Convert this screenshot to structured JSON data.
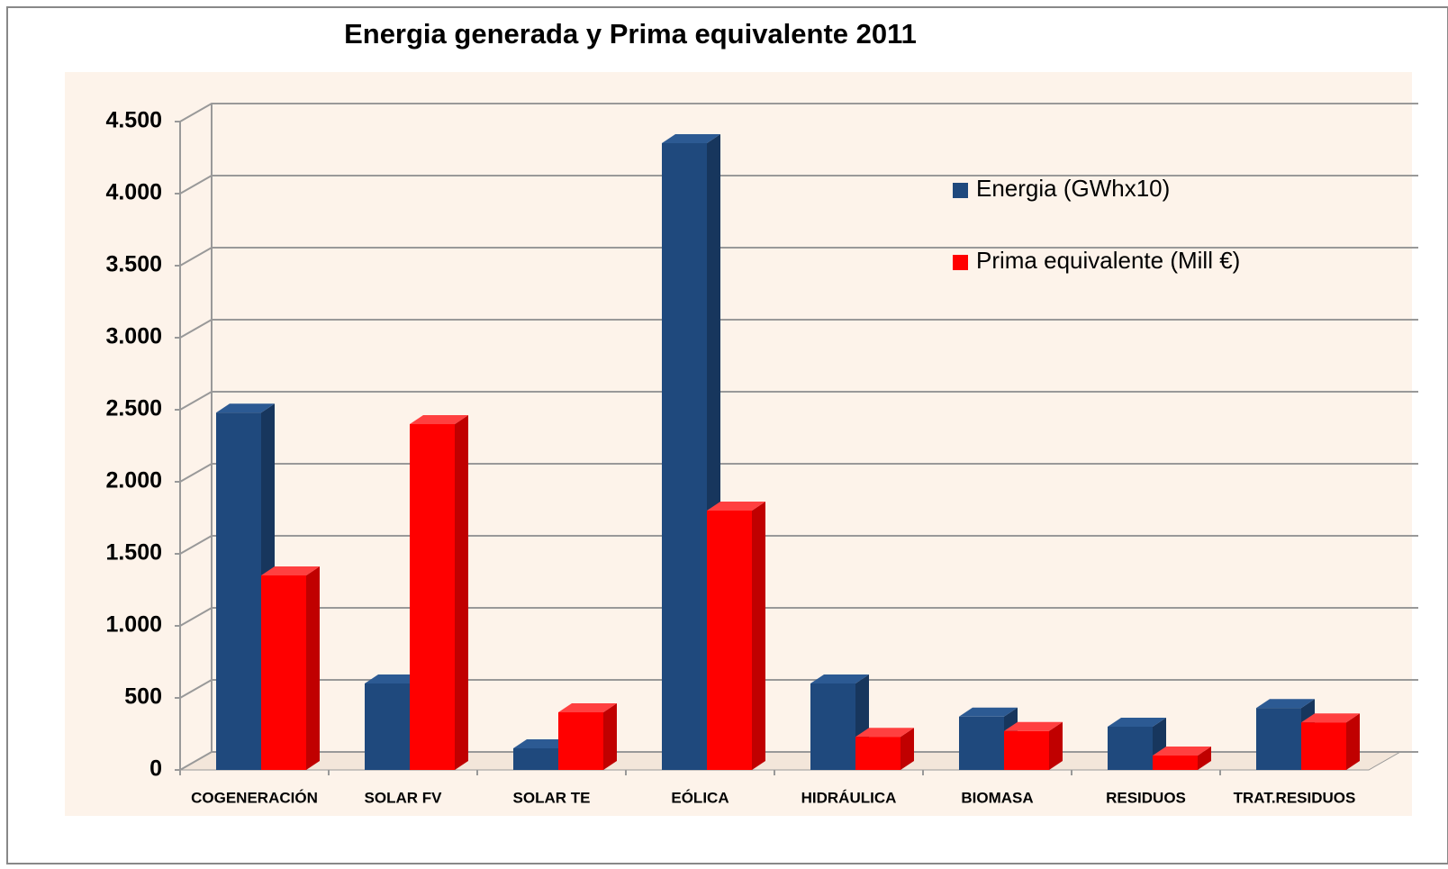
{
  "chart_data": {
    "type": "bar3d",
    "title": "Energia generada  y Prima equivalente 2011",
    "categories": [
      "COGENERACIÓN",
      "SOLAR FV",
      "SOLAR TE",
      "EÓLICA",
      "HIDRÁULICA",
      "BIOMASA",
      "RESIDUOS",
      "TRAT.RESIDUOS"
    ],
    "series": [
      {
        "name": "Energia (GWhx10)",
        "color": "#1f497d",
        "values": [
          2480,
          600,
          150,
          4350,
          600,
          370,
          300,
          430
        ]
      },
      {
        "name": "Prima equivalente (Mill €)",
        "color": "#ff0000",
        "values": [
          1350,
          2400,
          400,
          1800,
          230,
          270,
          100,
          330
        ]
      }
    ],
    "ylim": [
      0,
      4500
    ],
    "yticks": [
      0,
      500,
      {
        "value": 1000,
        "label": "1.000"
      },
      {
        "value": 1500,
        "label": "1.500"
      },
      {
        "value": 2000,
        "label": "2.000"
      },
      {
        "value": 2500,
        "label": "2.500"
      },
      {
        "value": 3000,
        "label": "3.000"
      },
      {
        "value": 3500,
        "label": "3.500"
      },
      {
        "value": 4000,
        "label": "4.000"
      },
      {
        "value": 4500,
        "label": "4.500"
      }
    ],
    "grid": true,
    "legend": "upper right"
  }
}
